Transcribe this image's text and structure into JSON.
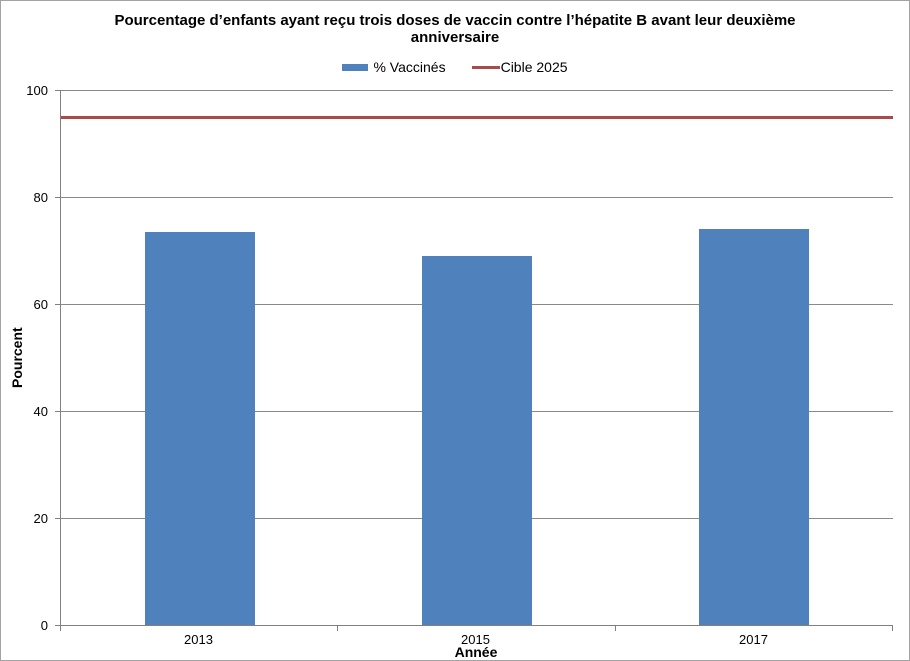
{
  "chart_data": {
    "type": "bar",
    "title": "Pourcentage d’enfants ayant reçu trois doses de vaccin contre l’hépatite B avant leur deuxième anniversaire",
    "xlabel": "Année",
    "ylabel": "Pourcent",
    "categories": [
      "2013",
      "2015",
      "2017"
    ],
    "series": [
      {
        "name": "% Vaccinés",
        "type": "bar",
        "values": [
          73.5,
          69,
          74
        ],
        "color": "#4F81BD"
      },
      {
        "name": "Cible 2025",
        "type": "line",
        "values": [
          95,
          95,
          95
        ],
        "color": "#A94B4D"
      }
    ],
    "ylim": [
      0,
      100
    ],
    "yticks": [
      0,
      20,
      40,
      60,
      80,
      100
    ],
    "grid": "horizontal",
    "legend_position": "top-center"
  },
  "colors": {
    "axis": "#808080",
    "gridline": "#898989",
    "border": "#A3A3A3",
    "text": "#000000"
  }
}
